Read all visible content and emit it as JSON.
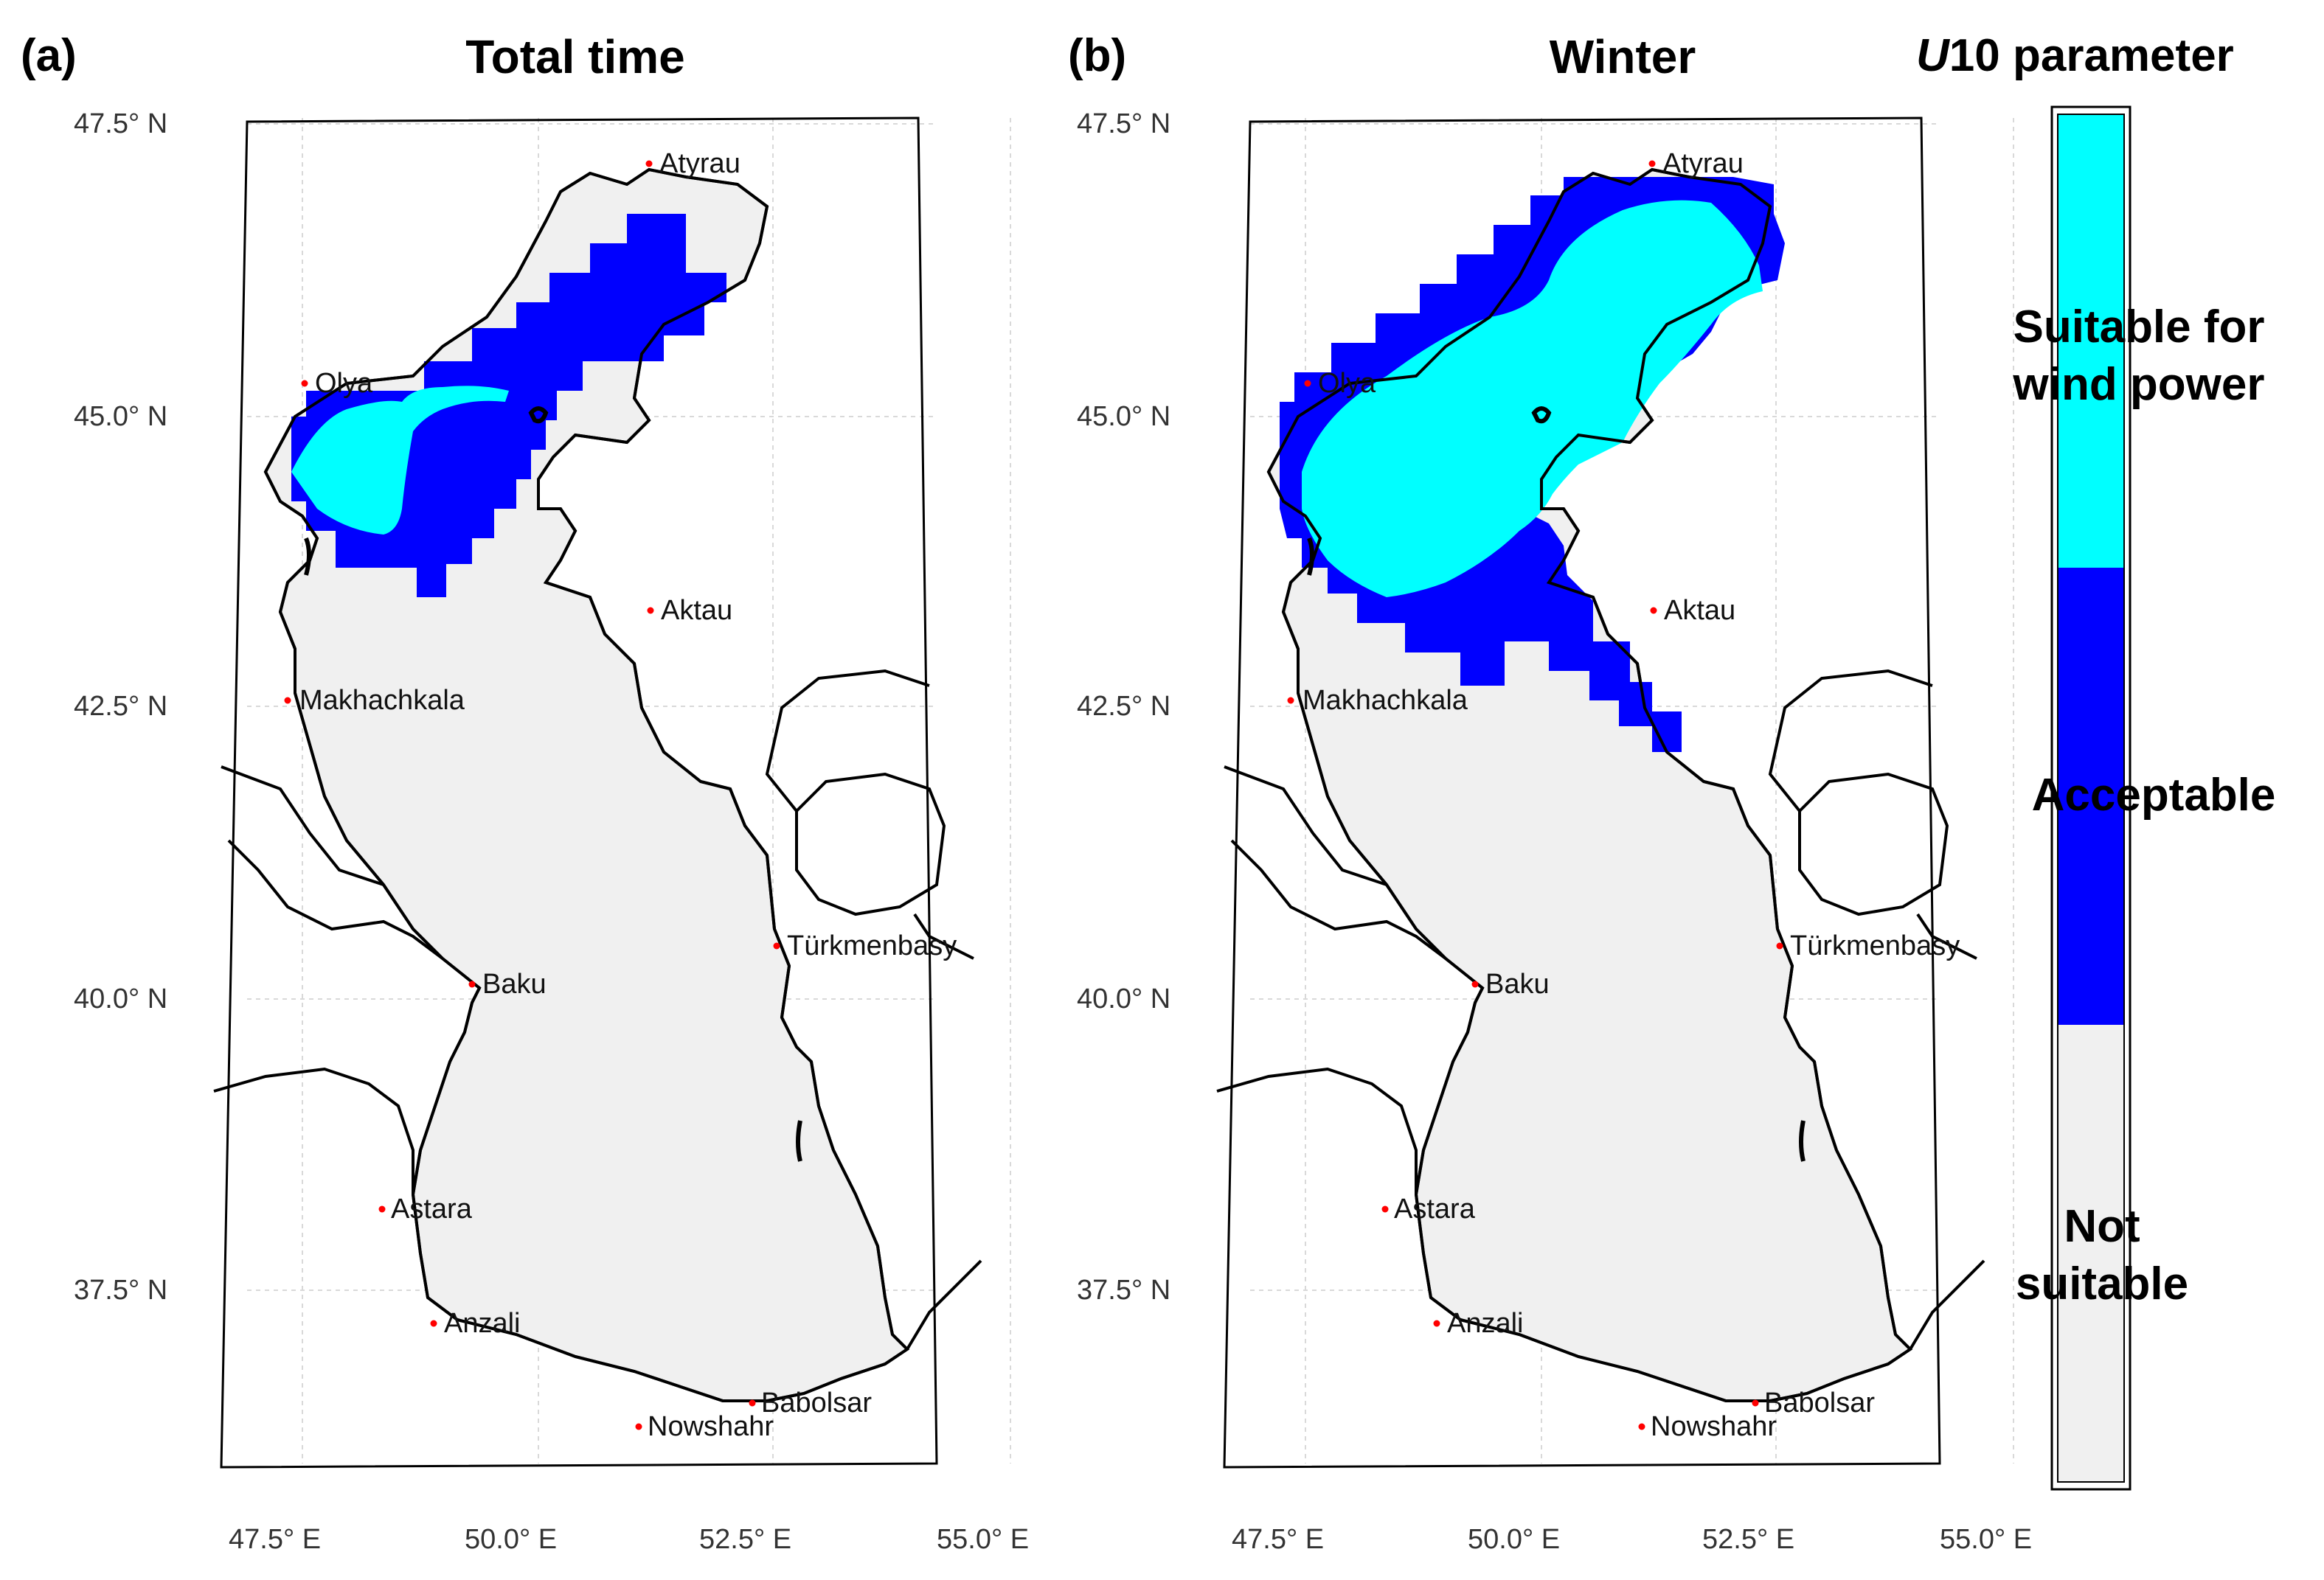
{
  "panels": [
    {
      "letter": "(a)",
      "title": "Total time"
    },
    {
      "letter": "(b)",
      "title": "Winter"
    }
  ],
  "lat_labels": [
    "47.5° N",
    "45.0° N",
    "42.5° N",
    "40.0° N",
    "37.5° N"
  ],
  "lon_labels": [
    "47.5° E",
    "50.0° E",
    "52.5° E",
    "55.0° E"
  ],
  "cities": [
    "Atyrau",
    "Olya",
    "Aktau",
    "Makhachkala",
    "Türkmenbasy",
    "Baku",
    "Astara",
    "Anzali",
    "Babolsar",
    "Nowshahr"
  ],
  "legend": {
    "title_italic": "U",
    "title_rest": "10 parameter",
    "classes": [
      {
        "label_line1": "Suitable for",
        "label_line2": "wind power",
        "color": "#00FFFF"
      },
      {
        "label_line1": "Acceptable",
        "label_line2": "",
        "color": "#0000FF"
      },
      {
        "label_line1": "Not",
        "label_line2": "suitable",
        "color": "#F0F0F0"
      }
    ]
  },
  "colors": {
    "sea": "#F0F0F0",
    "suitable": "#00FFFF",
    "acceptable": "#0000FF",
    "coast": "#000000",
    "city_marker": "#FF0000"
  }
}
